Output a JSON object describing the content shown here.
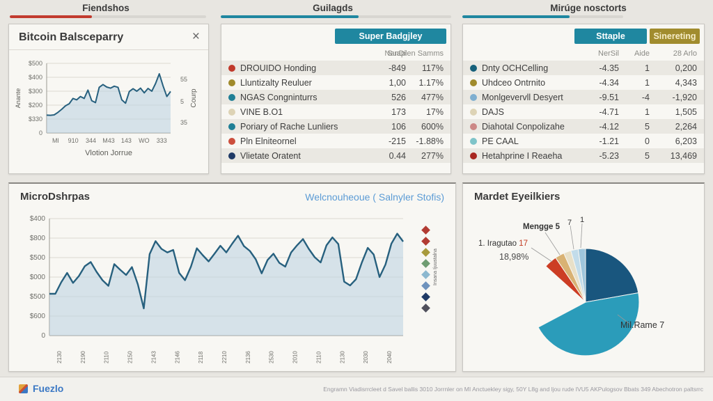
{
  "tabs": [
    {
      "label": "Fiendshos"
    },
    {
      "label": "Guilagds"
    },
    {
      "label": "Mirúge nosctorts"
    }
  ],
  "colors": {
    "red_accent": "#c23b2e",
    "teal_accent": "#1f87a0",
    "olive_accent": "#a18c2e",
    "line_stroke": "#27607e",
    "area_fill": "#b9d2e0",
    "link_blue": "#5b9bd5"
  },
  "bitcoin_panel": {
    "title": "Bitcoin Balsceparry",
    "close_icon": "×"
  },
  "mid_table": {
    "button": "Super Badgjley",
    "headers": [
      "NanDi",
      "Suaplen Samms"
    ],
    "rows": [
      {
        "dot": "#c0392b",
        "name": "DROUIDO Honding",
        "v1": "-849",
        "v2": "117%"
      },
      {
        "dot": "#a08b2d",
        "name": "Lluntizalty Reuluer",
        "v1": "1,00",
        "v2": "1.17%"
      },
      {
        "dot": "#1f7f96",
        "name": "NGAS Congninturrs",
        "v1": "526",
        "v2": "477%"
      },
      {
        "dot": "#ddd3b5",
        "name": "VINE B.O1",
        "v1": "173",
        "v2": "17%"
      },
      {
        "dot": "#1f7f96",
        "name": "Poriary of Rache Lunliers",
        "v1": "106",
        "v2": "600%"
      },
      {
        "dot": "#cc4f3d",
        "name": "Pln Elniteornel",
        "v1": "-215",
        "v2": "-1.88%"
      },
      {
        "dot": "#1f3a66",
        "name": "Vlietate Oratent",
        "v1": "0.44",
        "v2": "277%"
      }
    ]
  },
  "right_table": {
    "buttons": [
      "Sttaple",
      "Sinereting"
    ],
    "headers": [
      "NerSil",
      "Aide",
      "28 Arlo"
    ],
    "rows": [
      {
        "dot": "#16607a",
        "name": "Dnty OCHCelling",
        "v1": "-4.35",
        "v2": "1",
        "v3": "0,200"
      },
      {
        "dot": "#a08b2d",
        "name": "Uhdceo Ontrnito",
        "v1": "-4.34",
        "v2": "1",
        "v3": "4,343"
      },
      {
        "dot": "#7fafd0",
        "name": "Monlgevervll Desyert",
        "v1": "-9.51",
        "v2": "-4",
        "v3": "-1,920"
      },
      {
        "dot": "#ddd3b5",
        "name": "DAJS",
        "v1": "-4.71",
        "v2": "1",
        "v3": "1,505"
      },
      {
        "dot": "#cc8886",
        "name": "Diahotal Conpolizahe",
        "v1": "-4.12",
        "v2": "5",
        "v3": "2,264"
      },
      {
        "dot": "#7fc4c9",
        "name": "PE CAAL",
        "v1": "-1.21",
        "v2": "0",
        "v3": "6,203"
      },
      {
        "dot": "#a82721",
        "name": "Hetahprine I Reaeha",
        "v1": "-5.23",
        "v2": "5",
        "v3": "13,469"
      }
    ]
  },
  "micro_panel": {
    "title": "MicroDshrpas",
    "subtitle": "Welcnouheoue ( Salnyler Stofis)"
  },
  "pie_panel": {
    "title": "Mardet Eyeilkiers",
    "labels": {
      "mengge": "Mengge 5",
      "n7": "7",
      "n1": "1",
      "iragutao": "1. Iragutao",
      "iragutao_red": "17",
      "pct": "18,98%",
      "milrame": "Mil.Rame 7"
    }
  },
  "footer": {
    "brand": "Fuezlo",
    "note": "Engramn Viadisrrcleet d Savel ballis 3010 Jorrnler on MI Anctuekley sigy, 50Y L8g and ljou rude IVU5 AKPulogsov Bbats 349 Abechotron paltsrrc"
  },
  "chart_data": [
    {
      "id": "bitcoin_mini",
      "type": "line",
      "title": "Bitcoin Balsceparry",
      "xlabel": "Vlotion Jorrue",
      "ylabel_left": "Anante",
      "ylabel_right": "Courp",
      "y_ticks": [
        "$500",
        "$400",
        "$300",
        "$200",
        "$330",
        "0"
      ],
      "right_ticks": [
        "55",
        "5",
        "35"
      ],
      "x_ticks": [
        "Ml",
        "910",
        "344",
        "M43",
        "143",
        "WO",
        "333"
      ],
      "ylim": [
        0,
        500
      ],
      "grid": true,
      "values": [
        128,
        127,
        130,
        148,
        170,
        195,
        210,
        248,
        238,
        262,
        248,
        308,
        232,
        218,
        328,
        348,
        330,
        322,
        336,
        328,
        238,
        214,
        298,
        318,
        300,
        322,
        288,
        320,
        300,
        355,
        425,
        338,
        262,
        298
      ]
    },
    {
      "id": "micro_main",
      "type": "line",
      "title": "MicroDshrpas",
      "subtitle": "Welcnouheoue ( Salnyler Stofis)",
      "y_ticks": [
        "$400",
        "$800",
        "$500",
        "$000",
        "$500",
        "$600",
        "0"
      ],
      "x_ticks": [
        "2130",
        "2190",
        "2110",
        "2150",
        "2143",
        "2146",
        "2118",
        "2210",
        "2136",
        "2530",
        "2010",
        "2110",
        "2130",
        "2030",
        "2040"
      ],
      "ylim": [
        0,
        560
      ],
      "grid": true,
      "legend_label": "Insana Ijuustalna",
      "legend_marker_colors": [
        "#b23b32",
        "#b23b32",
        "#a89a3c",
        "#6f9d72",
        "#8cb8cf",
        "#6f93bd",
        "#1f3a66",
        "#50505c"
      ],
      "values": [
        200,
        200,
        255,
        300,
        252,
        285,
        332,
        352,
        305,
        265,
        238,
        342,
        315,
        290,
        328,
        245,
        130,
        390,
        452,
        415,
        398,
        410,
        300,
        265,
        330,
        418,
        385,
        355,
        392,
        430,
        398,
        440,
        478,
        428,
        405,
        365,
        298,
        362,
        392,
        348,
        330,
        398,
        432,
        462,
        415,
        375,
        350,
        432,
        470,
        438,
        258,
        240,
        270,
        350,
        420,
        388,
        280,
        340,
        440,
        488,
        450
      ]
    },
    {
      "id": "market_pie",
      "type": "pie",
      "title": "Mardet Eyeilkiers",
      "note": "slices are degrees clockwise from 12 o'clock; one wedge is blank",
      "slices": [
        {
          "label": "dark-blue segment",
          "value": 80,
          "color": "#19567e"
        },
        {
          "label": "Mil.Rame 7",
          "value": 162,
          "color": "#2b9cba"
        },
        {
          "label": "blank gap",
          "value": 70,
          "color": ""
        },
        {
          "label": "1. Iragutao 17 (18,98%)",
          "value": 14,
          "color": "#cc3d24"
        },
        {
          "label": "tan segment",
          "value": 10,
          "color": "#d9b273"
        },
        {
          "label": "beige segment",
          "value": 8,
          "color": "#e8e0c8"
        },
        {
          "label": "Mengge 5",
          "value": 8,
          "color": "#c2dcea"
        },
        {
          "label": "pale-blue segment",
          "value": 8,
          "color": "#9fc6dc"
        }
      ]
    }
  ]
}
